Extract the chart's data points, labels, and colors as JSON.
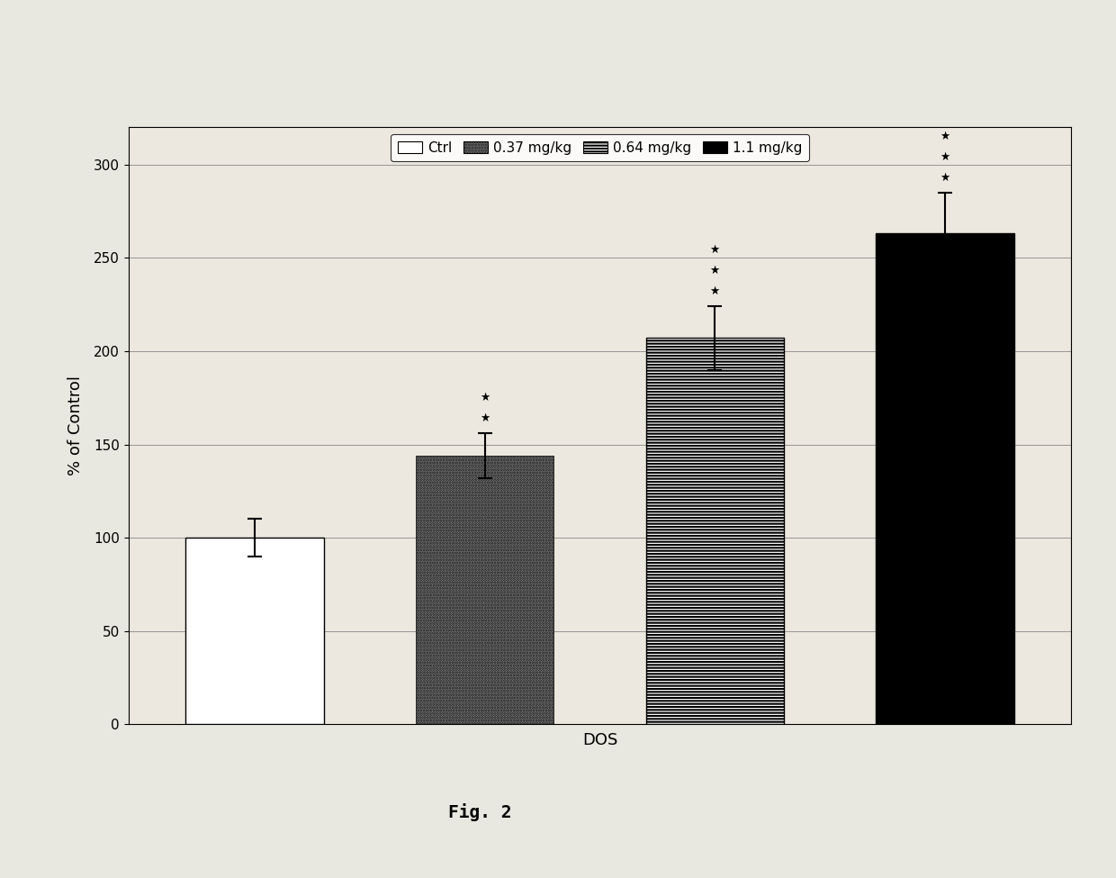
{
  "categories": [
    "Ctrl",
    "0.37 mg/kg",
    "0.64 mg/kg",
    "1.1 mg/kg"
  ],
  "values": [
    100,
    144,
    207,
    263
  ],
  "errors": [
    10,
    12,
    17,
    22
  ],
  "xlabel": "DOS",
  "ylabel": "% of Control",
  "ylim": [
    0,
    320
  ],
  "yticks": [
    0,
    50,
    100,
    150,
    200,
    250,
    300
  ],
  "legend_labels": [
    "Ctrl",
    "0.37 mg/kg",
    "0.64 mg/kg",
    "1.1 mg/kg"
  ],
  "figure_label": "Fig. 2",
  "outer_bg": "#e8e8e0",
  "inner_bg": "#ece8e0",
  "star_annotations": [
    {
      "bar": 1,
      "stars": 2
    },
    {
      "bar": 2,
      "stars": 3
    },
    {
      "bar": 3,
      "stars": 3
    }
  ]
}
